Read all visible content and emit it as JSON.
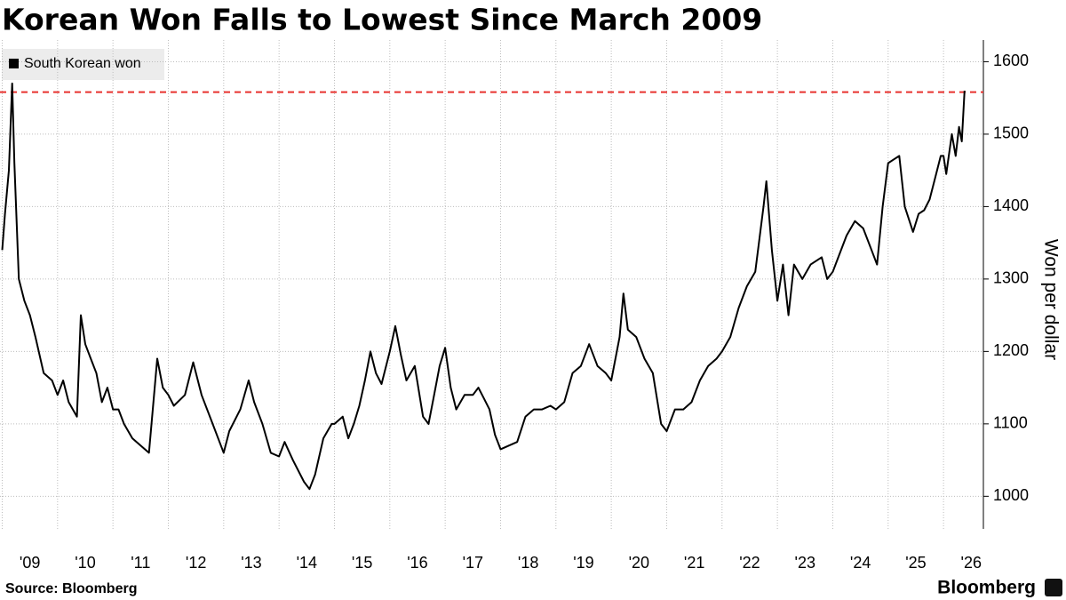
{
  "chart_data": {
    "type": "line",
    "title": "Korean Won Falls to Lowest Since March 2009",
    "y_label": "Won per dollar",
    "source": "Source: Bloomberg",
    "brand": "Bloomberg",
    "grid": true,
    "legend_position": "upper left",
    "xlim": [
      2008.96,
      2026.72
    ],
    "ylim": [
      955,
      1630
    ],
    "yticks": [
      1000,
      1100,
      1200,
      1300,
      1400,
      1500,
      1600
    ],
    "xticks": [
      {
        "value": 2009,
        "label": "'09"
      },
      {
        "value": 2010,
        "label": "'10"
      },
      {
        "value": 2011,
        "label": "'11"
      },
      {
        "value": 2012,
        "label": "'12"
      },
      {
        "value": 2013,
        "label": "'13"
      },
      {
        "value": 2014,
        "label": "'14"
      },
      {
        "value": 2015,
        "label": "'15"
      },
      {
        "value": 2016,
        "label": "'16"
      },
      {
        "value": 2017,
        "label": "'17"
      },
      {
        "value": 2018,
        "label": "'18"
      },
      {
        "value": 2019,
        "label": "'19"
      },
      {
        "value": 2020,
        "label": "'20"
      },
      {
        "value": 2021,
        "label": "'21"
      },
      {
        "value": 2022,
        "label": "'22"
      },
      {
        "value": 2023,
        "label": "'23"
      },
      {
        "value": 2024,
        "label": "'24"
      },
      {
        "value": 2025,
        "label": "'25"
      },
      {
        "value": 2026,
        "label": "'26"
      }
    ],
    "reference_line": {
      "value": 1558,
      "color": "#e8322f"
    },
    "x": [
      2009.0,
      2009.05,
      2009.12,
      2009.18,
      2009.22,
      2009.3,
      2009.4,
      2009.5,
      2009.6,
      2009.75,
      2009.9,
      2010.0,
      2010.1,
      2010.2,
      2010.35,
      2010.42,
      2010.5,
      2010.6,
      2010.7,
      2010.8,
      2010.9,
      2011.0,
      2011.1,
      2011.2,
      2011.35,
      2011.5,
      2011.65,
      2011.8,
      2011.9,
      2012.0,
      2012.1,
      2012.3,
      2012.45,
      2012.6,
      2012.8,
      2012.95,
      2013.0,
      2013.1,
      2013.3,
      2013.45,
      2013.55,
      2013.7,
      2013.85,
      2014.0,
      2014.1,
      2014.25,
      2014.45,
      2014.55,
      2014.65,
      2014.8,
      2014.95,
      2015.0,
      2015.15,
      2015.25,
      2015.35,
      2015.45,
      2015.55,
      2015.65,
      2015.75,
      2015.85,
      2016.0,
      2016.1,
      2016.2,
      2016.3,
      2016.45,
      2016.6,
      2016.7,
      2016.8,
      2016.9,
      2017.0,
      2017.1,
      2017.2,
      2017.35,
      2017.5,
      2017.6,
      2017.7,
      2017.8,
      2017.9,
      2018.0,
      2018.15,
      2018.3,
      2018.45,
      2018.6,
      2018.75,
      2018.9,
      2019.0,
      2019.15,
      2019.3,
      2019.45,
      2019.6,
      2019.75,
      2019.9,
      2020.0,
      2020.15,
      2020.22,
      2020.3,
      2020.45,
      2020.6,
      2020.75,
      2020.9,
      2021.0,
      2021.15,
      2021.3,
      2021.45,
      2021.6,
      2021.75,
      2021.9,
      2022.0,
      2022.15,
      2022.3,
      2022.45,
      2022.6,
      2022.75,
      2022.8,
      2022.9,
      2023.0,
      2023.1,
      2023.2,
      2023.3,
      2023.45,
      2023.6,
      2023.8,
      2023.9,
      2024.0,
      2024.1,
      2024.25,
      2024.4,
      2024.55,
      2024.7,
      2024.8,
      2024.9,
      2025.0,
      2025.1,
      2025.2,
      2025.3,
      2025.45,
      2025.55,
      2025.65,
      2025.75,
      2025.85,
      2025.95,
      2026.0,
      2026.05,
      2026.15,
      2026.22,
      2026.28,
      2026.33,
      2026.38
    ],
    "series": [
      {
        "name": "South Korean won",
        "color": "#000000",
        "values": [
          1340,
          1390,
          1450,
          1570,
          1460,
          1300,
          1270,
          1250,
          1220,
          1170,
          1160,
          1140,
          1160,
          1130,
          1110,
          1250,
          1210,
          1190,
          1170,
          1130,
          1150,
          1120,
          1120,
          1100,
          1080,
          1070,
          1060,
          1190,
          1150,
          1140,
          1125,
          1140,
          1185,
          1140,
          1100,
          1070,
          1060,
          1090,
          1120,
          1160,
          1130,
          1100,
          1060,
          1055,
          1075,
          1050,
          1020,
          1010,
          1030,
          1080,
          1100,
          1100,
          1110,
          1080,
          1100,
          1125,
          1160,
          1200,
          1170,
          1155,
          1200,
          1235,
          1195,
          1160,
          1180,
          1110,
          1100,
          1140,
          1180,
          1205,
          1150,
          1120,
          1140,
          1140,
          1150,
          1135,
          1120,
          1085,
          1065,
          1070,
          1075,
          1110,
          1120,
          1120,
          1125,
          1120,
          1130,
          1170,
          1180,
          1210,
          1180,
          1170,
          1160,
          1220,
          1280,
          1230,
          1220,
          1190,
          1170,
          1100,
          1090,
          1120,
          1120,
          1130,
          1160,
          1180,
          1190,
          1200,
          1220,
          1260,
          1290,
          1310,
          1400,
          1435,
          1340,
          1270,
          1320,
          1250,
          1320,
          1300,
          1320,
          1330,
          1300,
          1310,
          1330,
          1360,
          1380,
          1370,
          1340,
          1320,
          1400,
          1460,
          1465,
          1470,
          1400,
          1365,
          1390,
          1395,
          1410,
          1440,
          1470,
          1470,
          1445,
          1500,
          1470,
          1510,
          1490,
          1560
        ]
      }
    ]
  }
}
